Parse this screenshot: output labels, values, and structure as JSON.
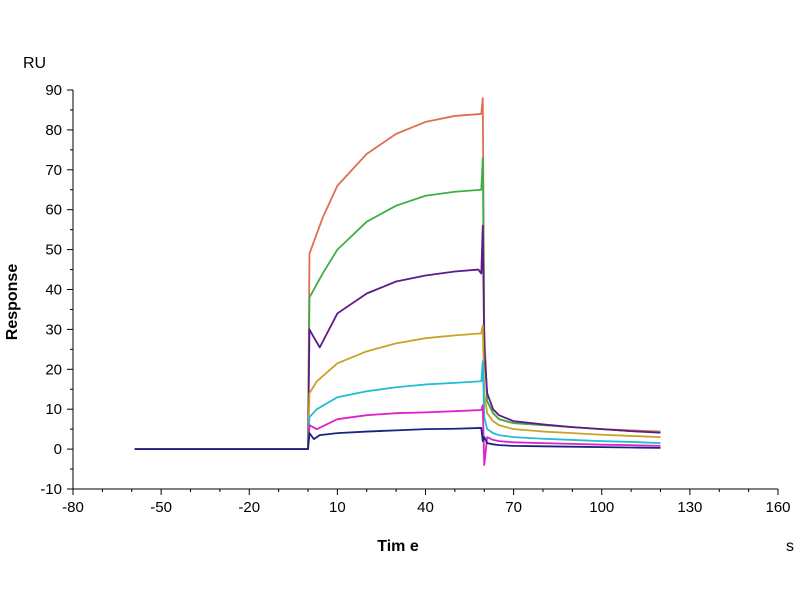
{
  "chart_data": {
    "type": "line",
    "xlabel": "Tim e",
    "ylabel": "Response",
    "x_unit": "s",
    "y_unit": "RU",
    "xlim": [
      -80,
      160
    ],
    "ylim": [
      -10,
      90
    ],
    "x_ticks": [
      -80,
      -50,
      -20,
      10,
      40,
      70,
      100,
      130,
      160
    ],
    "y_ticks": [
      -10,
      0,
      10,
      20,
      30,
      40,
      50,
      60,
      70,
      80,
      90
    ],
    "grid": false,
    "legend": "none",
    "association_start": 0,
    "dissociation_start": 60,
    "series": [
      {
        "color": "#e06f4f",
        "x": [
          -59,
          -30,
          0,
          0.5,
          5,
          10,
          20,
          30,
          40,
          50,
          59,
          59.5,
          60,
          61,
          63,
          65,
          70,
          80,
          90,
          100,
          110,
          120
        ],
        "y": [
          0,
          0,
          0,
          49,
          58,
          66,
          74,
          79,
          82,
          83.5,
          84,
          88,
          30,
          12,
          9,
          7.5,
          6.5,
          6,
          5.5,
          5,
          4.7,
          4.4
        ]
      },
      {
        "color": "#3cb043",
        "x": [
          -59,
          0,
          0.5,
          5,
          10,
          20,
          30,
          40,
          50,
          59,
          59.5,
          60,
          61,
          63,
          65,
          70,
          80,
          90,
          100,
          110,
          120
        ],
        "y": [
          0,
          0,
          38,
          44,
          50,
          57,
          61,
          63.5,
          64.5,
          65,
          73,
          28,
          12,
          9,
          7.5,
          6.5,
          6,
          5.5,
          5,
          4.5,
          4.2
        ]
      },
      {
        "color": "#5e1a8a",
        "x": [
          -59,
          0,
          0.5,
          2,
          4,
          10,
          20,
          30,
          40,
          50,
          58,
          59,
          59.5,
          60,
          61,
          63,
          65,
          70,
          80,
          90,
          100,
          110,
          120
        ],
        "y": [
          0,
          0,
          30,
          28,
          25.5,
          34,
          39,
          42,
          43.5,
          44.5,
          45,
          44,
          56,
          25,
          14,
          10,
          8.5,
          7,
          6.2,
          5.5,
          5,
          4.5,
          4.1
        ]
      },
      {
        "color": "#c9a227",
        "x": [
          -59,
          0,
          0.5,
          3,
          10,
          20,
          30,
          40,
          50,
          59,
          59.5,
          60,
          61,
          63,
          65,
          70,
          80,
          90,
          100,
          110,
          120
        ],
        "y": [
          0,
          0,
          14,
          17,
          21.5,
          24.5,
          26.5,
          27.8,
          28.5,
          29,
          31,
          14,
          9,
          7,
          6,
          5,
          4.4,
          4,
          3.6,
          3.3,
          3
        ]
      },
      {
        "color": "#22bcd4",
        "x": [
          -59,
          0,
          0.5,
          3,
          10,
          20,
          30,
          40,
          50,
          59,
          59.5,
          60,
          61,
          63,
          65,
          70,
          80,
          90,
          100,
          110,
          120
        ],
        "y": [
          0,
          0,
          8,
          10,
          13,
          14.5,
          15.5,
          16.2,
          16.6,
          17,
          22,
          8,
          5,
          4,
          3.5,
          3,
          2.6,
          2.3,
          2,
          1.8,
          1.5
        ]
      },
      {
        "color": "#e020c8",
        "x": [
          -59,
          0,
          0.5,
          3,
          10,
          20,
          30,
          40,
          50,
          59,
          59.5,
          60,
          61,
          63,
          65,
          70,
          80,
          90,
          100,
          110,
          120
        ],
        "y": [
          0,
          0,
          6,
          5,
          7.5,
          8.5,
          9,
          9.2,
          9.5,
          9.8,
          11,
          -4,
          3,
          2.3,
          2,
          1.7,
          1.5,
          1.3,
          1.1,
          1,
          0.8
        ]
      },
      {
        "color": "#1a237e",
        "x": [
          -59,
          0,
          0.5,
          2,
          4,
          10,
          20,
          30,
          40,
          50,
          59,
          59.5,
          60,
          61,
          63,
          65,
          70,
          80,
          90,
          100,
          110,
          120
        ],
        "y": [
          0,
          0,
          4,
          2.5,
          3.5,
          4,
          4.4,
          4.7,
          5,
          5.1,
          5.3,
          2,
          3,
          1.5,
          1.2,
          1,
          0.8,
          0.7,
          0.6,
          0.5,
          0.4,
          0.3
        ]
      }
    ]
  }
}
